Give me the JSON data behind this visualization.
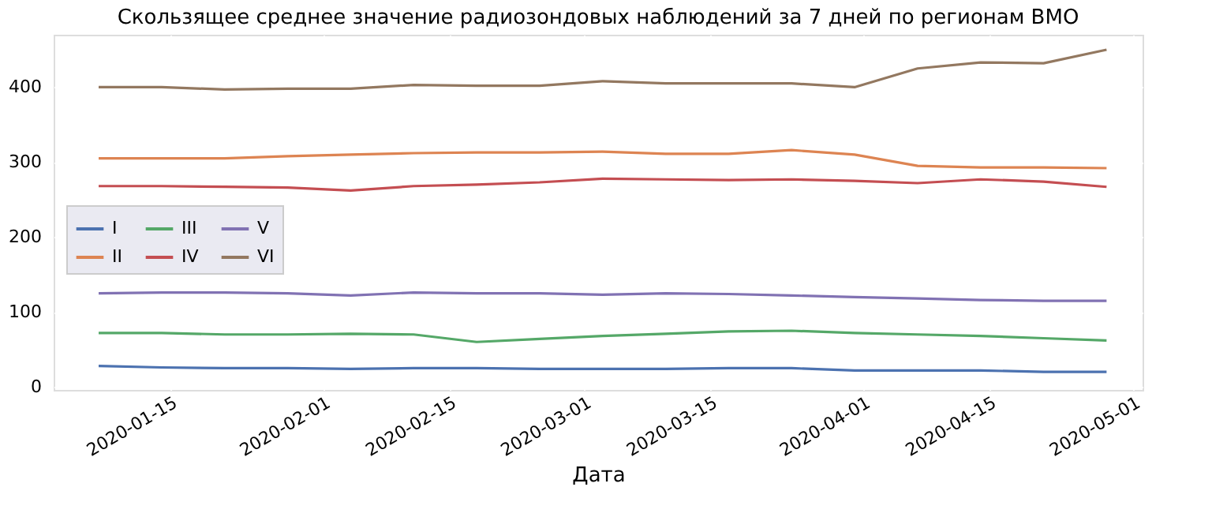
{
  "chart_data": {
    "type": "line",
    "title": "Скользящее среднее значение радиозондовых наблюдений за 7 дней по регионам ВМО",
    "xlabel": "Дата",
    "x": [
      "2020-01-07",
      "2020-01-14",
      "2020-01-21",
      "2020-01-28",
      "2020-02-04",
      "2020-02-11",
      "2020-02-18",
      "2020-02-25",
      "2020-03-03",
      "2020-03-10",
      "2020-03-17",
      "2020-03-24",
      "2020-03-31",
      "2020-04-07",
      "2020-04-14",
      "2020-04-21",
      "2020-04-28"
    ],
    "series": [
      {
        "name": "I",
        "color": "#4c72b0",
        "values": [
          28,
          26,
          25,
          25,
          24,
          25,
          25,
          24,
          24,
          24,
          25,
          25,
          22,
          22,
          22,
          20,
          20
        ]
      },
      {
        "name": "II",
        "color": "#dd8452",
        "values": [
          305,
          305,
          305,
          308,
          310,
          312,
          313,
          313,
          314,
          311,
          311,
          316,
          310,
          295,
          293,
          293,
          292
        ]
      },
      {
        "name": "III",
        "color": "#55a868",
        "values": [
          72,
          72,
          70,
          70,
          71,
          70,
          60,
          64,
          68,
          71,
          74,
          75,
          72,
          70,
          68,
          65,
          62
        ]
      },
      {
        "name": "IV",
        "color": "#c44e52",
        "values": [
          268,
          268,
          267,
          266,
          262,
          268,
          270,
          273,
          278,
          277,
          276,
          277,
          275,
          272,
          277,
          274,
          267
        ]
      },
      {
        "name": "V",
        "color": "#8172b3",
        "values": [
          125,
          126,
          126,
          125,
          122,
          126,
          125,
          125,
          123,
          125,
          124,
          122,
          120,
          118,
          116,
          115,
          115
        ]
      },
      {
        "name": "VI",
        "color": "#937860",
        "values": [
          400,
          400,
          397,
          398,
          398,
          403,
          402,
          402,
          408,
          405,
          405,
          405,
          400,
          425,
          433,
          432,
          450
        ]
      }
    ],
    "xlim": [
      "2020-01-02",
      "2020-05-02"
    ],
    "xticks": [
      "2020-01-15",
      "2020-02-01",
      "2020-02-15",
      "2020-03-01",
      "2020-03-15",
      "2020-04-01",
      "2020-04-15",
      "2020-05-01"
    ],
    "ylim": [
      -4,
      470
    ],
    "yticks": [
      0,
      100,
      200,
      300,
      400
    ],
    "grid": true,
    "legend": "left",
    "line_style": "solid"
  }
}
